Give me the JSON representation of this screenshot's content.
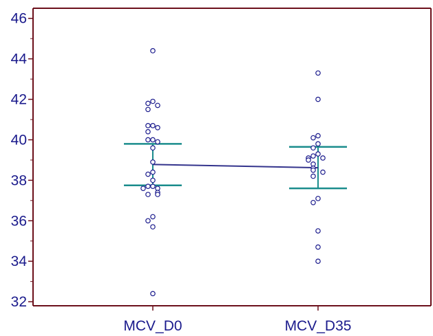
{
  "chart_data": {
    "type": "scatter",
    "title": "",
    "xlabel": "",
    "ylabel": "",
    "categories": [
      "MCV_D0",
      "MCV_D35"
    ],
    "ylim": [
      31.8,
      46.5
    ],
    "yticks": [
      32,
      34,
      36,
      38,
      40,
      42,
      44,
      46
    ],
    "grid": false,
    "series": [
      {
        "category": "MCV_D0",
        "points": [
          44.4,
          41.9,
          41.8,
          41.7,
          41.5,
          40.7,
          40.7,
          40.6,
          40.4,
          40.0,
          40.0,
          39.9,
          39.6,
          38.9,
          38.4,
          38.3,
          38.0,
          37.7,
          37.7,
          37.6,
          37.6,
          37.4,
          37.3,
          37.3,
          36.2,
          36.0,
          35.7,
          32.4
        ],
        "mean": 38.78,
        "upper": 39.8,
        "lower": 37.75
      },
      {
        "category": "MCV_D35",
        "points": [
          43.3,
          42.0,
          40.2,
          40.1,
          39.8,
          39.6,
          39.3,
          39.2,
          39.1,
          39.1,
          39.0,
          38.8,
          38.6,
          38.5,
          38.4,
          38.2,
          37.1,
          36.9,
          35.5,
          34.7,
          34.0
        ],
        "mean": 38.62,
        "upper": 39.65,
        "lower": 37.6
      }
    ],
    "colors": {
      "axis": "#6b0f1a",
      "text": "#1a1a8c",
      "points": "#1a1a8c",
      "errorbars": "#1a8c8c",
      "meanline": "#33338c"
    }
  }
}
